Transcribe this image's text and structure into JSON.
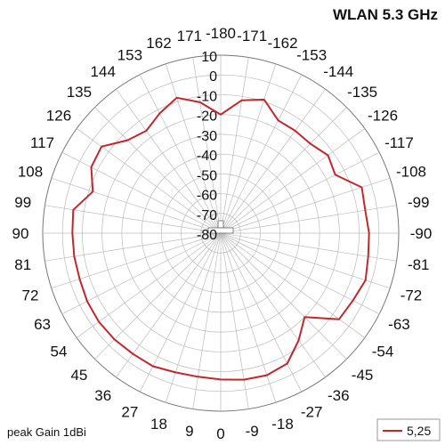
{
  "chart_data": {
    "type": "polar-line",
    "title": "WLAN 5.3 GHz",
    "footnote": "peak Gain 1dBi",
    "angle_labels": [
      -180,
      -171,
      -162,
      -153,
      -144,
      -135,
      -126,
      -117,
      -108,
      -99,
      -90,
      -81,
      -72,
      -63,
      -54,
      -45,
      -36,
      -27,
      -18,
      -9,
      0,
      9,
      18,
      27,
      36,
      45,
      54,
      63,
      72,
      81,
      90,
      99,
      108,
      117,
      126,
      135,
      144,
      153,
      162,
      171
    ],
    "radial_labels": [
      10,
      0,
      -10,
      -20,
      -30,
      -40,
      -50,
      -60,
      -70,
      -80
    ],
    "r_range": [
      -80,
      10
    ],
    "grid": true,
    "legend_position": "bottom-right",
    "series": [
      {
        "name": "5,25",
        "color": "#c1272d",
        "angles": [
          0,
          9,
          18,
          27,
          36,
          45,
          54,
          63,
          72,
          81,
          90,
          99,
          108,
          117,
          126,
          135,
          144,
          153,
          162,
          171,
          -180,
          -171,
          -162,
          -153,
          -144,
          -135,
          -126,
          -117,
          -108,
          -99,
          -90,
          -81,
          -72,
          -63,
          -54,
          -45,
          -36,
          -27,
          -18,
          -9
        ],
        "gain_db": [
          -6,
          -6.5,
          -6,
          -4.5,
          -4.5,
          -4,
          -3.8,
          -4.2,
          -5,
          -5,
          -5,
          -4.5,
          -12,
          -6.5,
          -5.5,
          -13.5,
          -16,
          -12,
          -8,
          -13,
          -20,
          -12,
          -9,
          -16,
          -16,
          -16,
          -13,
          -15,
          -5,
          -6,
          -5,
          -4.5,
          -3,
          -5,
          -6,
          -20,
          -13,
          -6,
          -4.5,
          -5
        ]
      }
    ]
  }
}
